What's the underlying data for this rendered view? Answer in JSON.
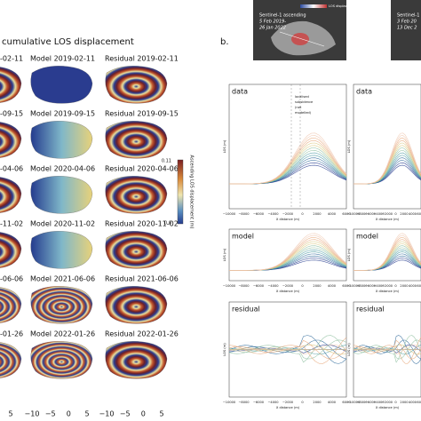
{
  "panel_a": {
    "title": "cumulative LOS displacement",
    "rows": [
      {
        "data": "-02-11",
        "model": "Model 2019-02-11",
        "residual": "Residual 2019-02-11"
      },
      {
        "data": "-09-15",
        "model": "Model 2019-09-15",
        "residual": "Residual 2019-09-15"
      },
      {
        "data": "-04-06",
        "model": "Model 2020-04-06",
        "residual": "Residual 2020-04-06"
      },
      {
        "data": "-11-02",
        "model": "Model 2020-11-02",
        "residual": "Residual 2020-11-02"
      },
      {
        "data": "-06-06",
        "model": "Model 2021-06-06",
        "residual": "Residual 2021-06-06"
      },
      {
        "data": "-01-26",
        "model": "Model 2022-01-26",
        "residual": "Residual 2022-01-26"
      }
    ],
    "colorbar": {
      "label": "Ascending LOS displacement (m)",
      "top": "0.11",
      "bottom": "0.0"
    },
    "x_ticks_data": [
      "5"
    ],
    "x_ticks_model": [
      "−10",
      "−5",
      "0",
      "5"
    ],
    "x_ticks_residual": [
      "−10",
      "−5",
      "0",
      "5"
    ]
  },
  "panel_b": {
    "label": "b.",
    "inset_left": {
      "title": "Sentinel-1 ascending",
      "dates_start": "5 Feb 2019-",
      "dates_end": "26 Jan 2022",
      "colorbar_label": "LOS displacement (m)"
    },
    "inset_right": {
      "title": "Sentinel-1",
      "dates_start": "3 Feb 20",
      "dates_end": "13 Dec 2"
    },
    "plots": [
      "data",
      "model",
      "residual"
    ],
    "y_label": "LOS (m)",
    "x_label": "X distance (m)",
    "x_ticks": [
      "−10000",
      "−8000",
      "−6000",
      "−4000",
      "−2000",
      "0",
      "2000",
      "4000",
      "6000"
    ],
    "legend": [
      "localised",
      "subsidence",
      "(not",
      "modelled)"
    ]
  }
}
